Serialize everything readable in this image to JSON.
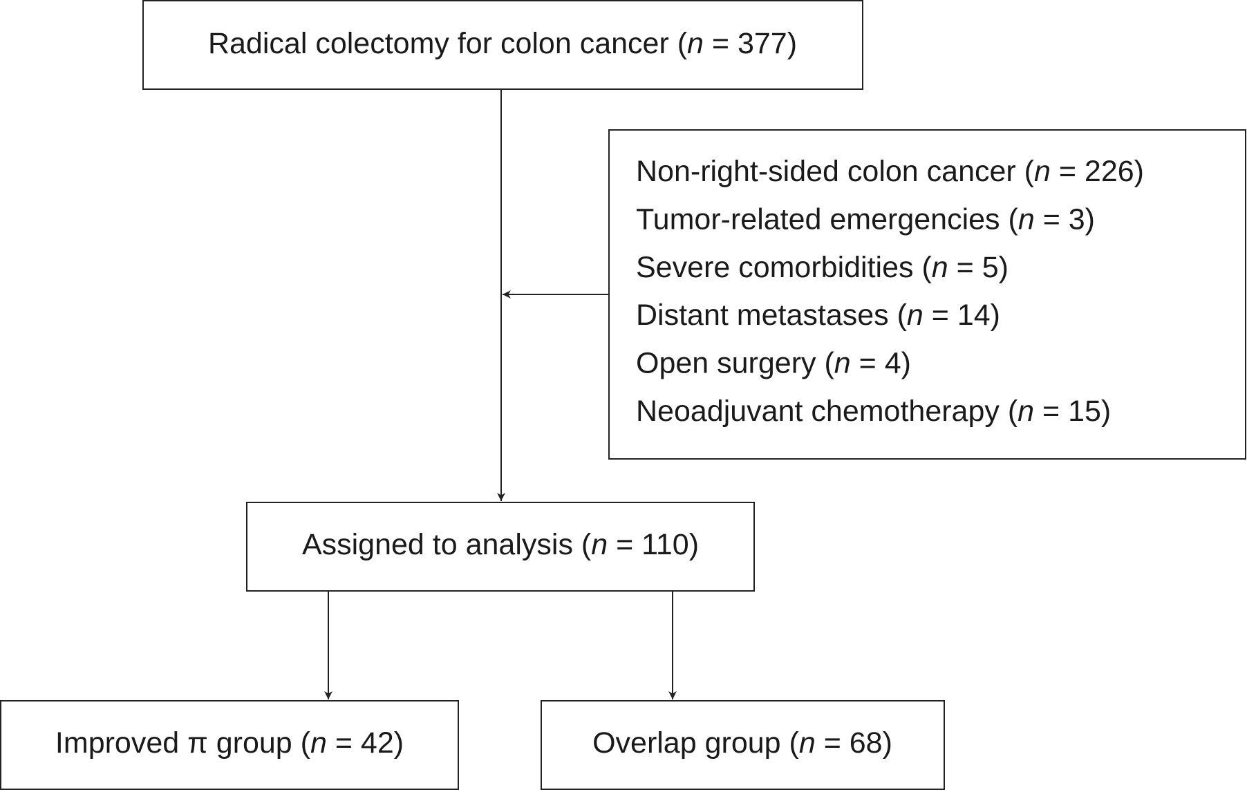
{
  "nodes": [
    {
      "pre": "Radical colectomy for colon cancer (",
      "var": "n",
      "post": " = 377)"
    },
    {
      "pre": "Assigned to analysis (",
      "var": "n",
      "post": " = 110)"
    },
    {
      "pre": "Improved π group (",
      "var": "n",
      "post": " = 42)"
    },
    {
      "pre": "Overlap group (",
      "var": "n",
      "post": " = 68)"
    }
  ],
  "exclusions": [
    {
      "pre": "Non-right-sided colon cancer (",
      "var": "n",
      "post": " = 226)"
    },
    {
      "pre": "Tumor-related emergencies (",
      "var": "n",
      "post": " = 3)"
    },
    {
      "pre": "Severe comorbidities (",
      "var": "n",
      "post": " = 5)"
    },
    {
      "pre": "Distant metastases (",
      "var": "n",
      "post": " = 14)"
    },
    {
      "pre": "Open surgery (",
      "var": "n",
      "post": " = 4)"
    },
    {
      "pre": "Neoadjuvant chemotherapy (",
      "var": "n",
      "post": " = 15)"
    }
  ]
}
